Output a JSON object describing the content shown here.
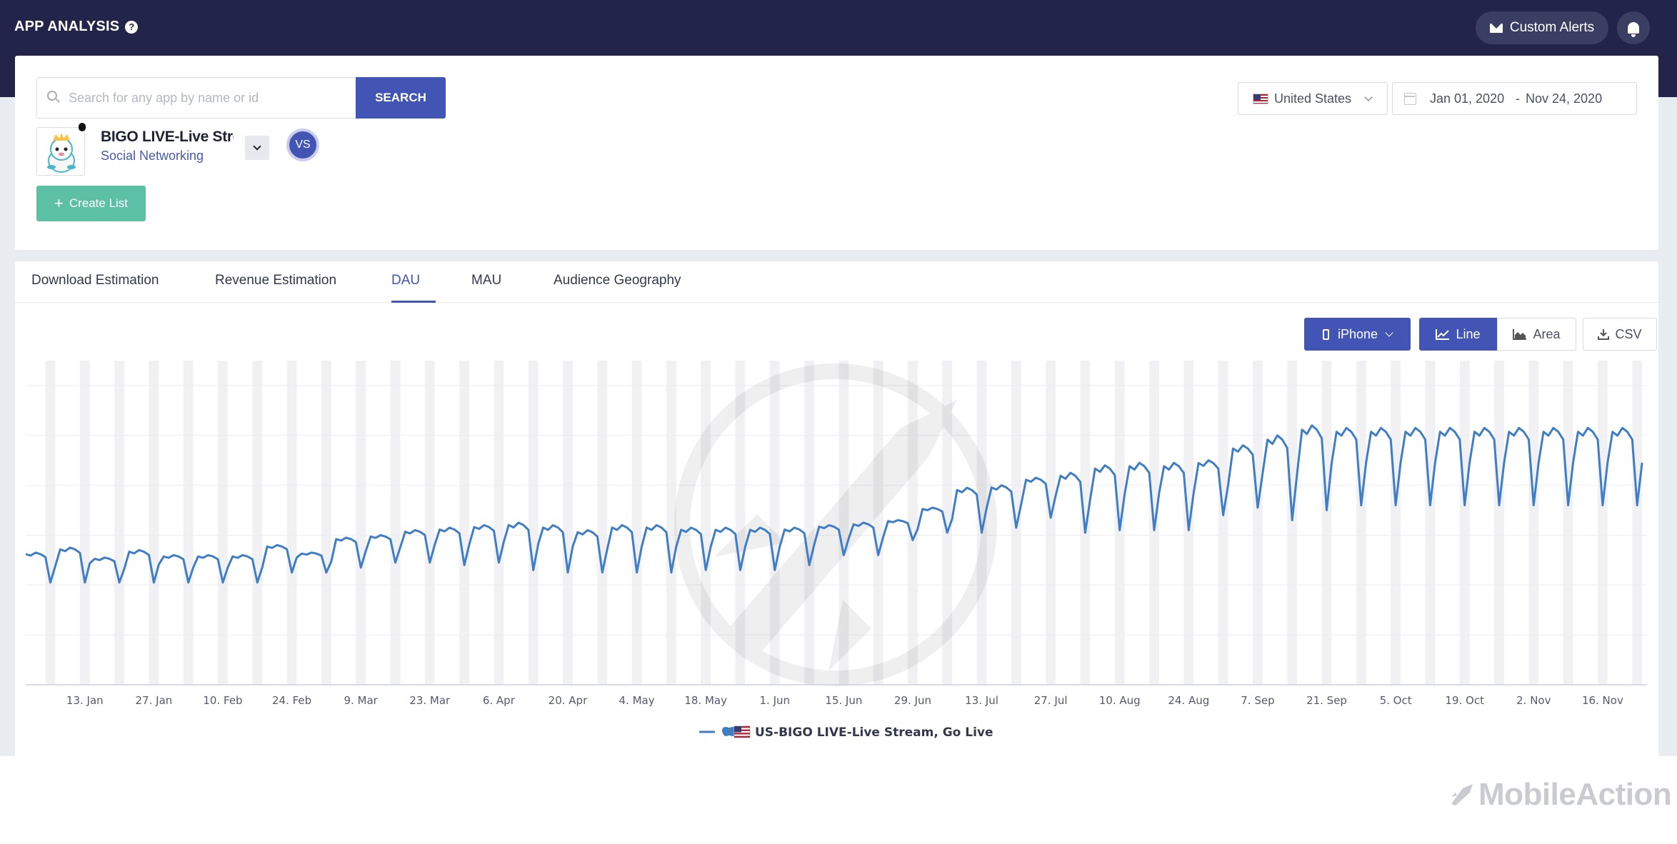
{
  "header": {
    "title": "APP ANALYSIS",
    "help_icon": "question-circle-icon",
    "custom_alerts_label": "Custom Alerts",
    "bell_icon": "bell-icon"
  },
  "search": {
    "placeholder": "Search for any app by name or id",
    "button_label": "SEARCH"
  },
  "app": {
    "name": "BIGO LIVE-Live Stream, Go Live",
    "category": "Social Networking",
    "vs_label": "VS"
  },
  "create_list_label": "Create List",
  "filters": {
    "country": "United States",
    "date_start": "Jan 01, 2020",
    "date_separator": "-",
    "date_end": "Nov 24, 2020"
  },
  "tabs": [
    {
      "label": "Download Estimation"
    },
    {
      "label": "Revenue Estimation"
    },
    {
      "label": "DAU",
      "active": true
    },
    {
      "label": "MAU"
    },
    {
      "label": "Audience Geography"
    }
  ],
  "controls": {
    "device": "iPhone",
    "line_label": "Line",
    "area_label": "Area",
    "csv_label": "CSV"
  },
  "brand": "MobileAction",
  "chart_data": {
    "type": "line",
    "title": "",
    "xlabel": "",
    "ylabel": "",
    "x_tick_labels": [
      "13. Jan",
      "27. Jan",
      "10. Feb",
      "24. Feb",
      "9. Mar",
      "23. Mar",
      "6. Apr",
      "20. Apr",
      "4. May",
      "18. May",
      "1. Jun",
      "15. Jun",
      "29. Jun",
      "13. Jul",
      "27. Jul",
      "10. Aug",
      "24. Aug",
      "7. Sep",
      "21. Sep",
      "5. Oct",
      "19. Oct",
      "2. Nov",
      "16. Nov"
    ],
    "legend_position": "bottom-center",
    "series": [
      {
        "name": "US-BIGO LIVE-Live Stream, Go Live",
        "color": "#3f7ec4",
        "weekly_values": [
          53,
          55,
          51,
          54,
          52,
          52,
          52,
          56,
          53,
          59,
          60,
          62,
          63,
          64,
          65,
          64,
          62,
          64,
          64,
          63,
          63,
          63,
          63,
          64,
          65,
          66,
          71,
          79,
          80,
          83,
          85,
          88,
          89,
          89,
          90,
          96,
          100,
          104,
          103
        ],
        "weekly_dips": [
          41,
          41,
          41,
          41,
          41,
          41,
          41,
          45,
          45,
          47,
          49,
          49,
          48,
          49,
          46,
          45,
          45,
          45,
          45,
          46,
          46,
          46,
          48,
          52,
          52,
          58,
          61,
          61,
          63,
          67,
          61,
          62,
          62,
          62,
          68,
          71,
          66,
          70,
          72
        ]
      }
    ]
  }
}
